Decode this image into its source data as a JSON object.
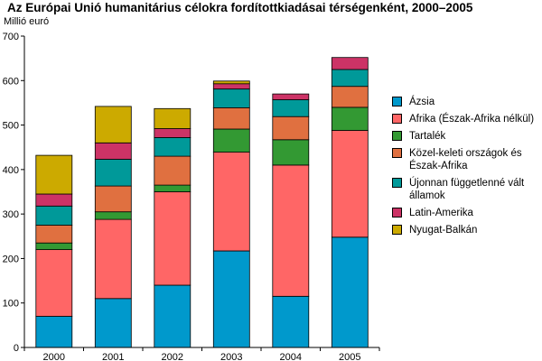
{
  "chart_data": {
    "type": "bar",
    "stacked": true,
    "title": "Az Európai Unió humanitárius célokra fordítottkiadásai térségenként, 2000–2005",
    "unit_label": "Millió euró",
    "categories": [
      "2000",
      "2001",
      "2002",
      "2003",
      "2004",
      "2005"
    ],
    "ylim": [
      0,
      700
    ],
    "yticks": [
      0,
      100,
      200,
      300,
      400,
      500,
      600,
      700
    ],
    "grid": false,
    "legend_position": "right",
    "series": [
      {
        "name": "Ázsia",
        "color": "#0099cc",
        "values": [
          70,
          110,
          140,
          217,
          115,
          248
        ]
      },
      {
        "name": "Afrika (Észak-Afrika nélkül)",
        "color": "#ff6666",
        "values": [
          150,
          178,
          210,
          222,
          295,
          240
        ]
      },
      {
        "name": "Tartalék",
        "color": "#339933",
        "values": [
          15,
          17,
          15,
          52,
          57,
          52
        ]
      },
      {
        "name": "Közel-keleti országok és Észak-Afrika",
        "color": "#e07040",
        "values": [
          40,
          58,
          65,
          48,
          52,
          47
        ]
      },
      {
        "name": "Újonnan függetlenné vált államok",
        "color": "#009999",
        "values": [
          43,
          60,
          42,
          42,
          38,
          38
        ]
      },
      {
        "name": "Latin-Amerika",
        "color": "#cc3366",
        "values": [
          27,
          37,
          20,
          12,
          13,
          27
        ]
      },
      {
        "name": "Nyugat-Balkán",
        "color": "#ccaa00",
        "values": [
          87,
          82,
          45,
          6,
          0,
          0
        ]
      }
    ]
  }
}
